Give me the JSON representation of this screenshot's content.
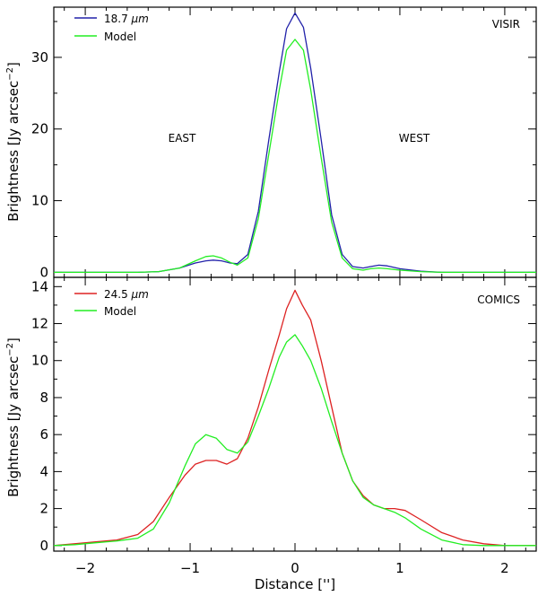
{
  "chart_data": [
    {
      "type": "line",
      "id": "top",
      "annotation": "VISIR",
      "region_labels": [
        "EAST",
        "WEST"
      ],
      "ylabel_prefix": "Brightness [Jy arcsec",
      "ylabel_exp": "−2",
      "ylabel_suffix": "]",
      "xlim": [
        -2.3,
        2.3
      ],
      "ylim": [
        -0.7,
        37.0
      ],
      "yticks": [
        0,
        10,
        20,
        30
      ],
      "ytick_labels": [
        "0",
        "10",
        "20",
        "30"
      ],
      "xticks": [
        -2,
        -1,
        0,
        1,
        2
      ],
      "legend_loc": "top-left",
      "series": [
        {
          "name": "18.7 μm",
          "name_value": "18.7",
          "name_unit": "μm",
          "color": "#2222aa",
          "x": [
            -2.3,
            -1.8,
            -1.5,
            -1.3,
            -1.1,
            -0.95,
            -0.85,
            -0.78,
            -0.7,
            -0.62,
            -0.55,
            -0.45,
            -0.35,
            -0.25,
            -0.15,
            -0.08,
            0.0,
            0.08,
            0.15,
            0.25,
            0.35,
            0.45,
            0.55,
            0.65,
            0.72,
            0.8,
            0.88,
            1.0,
            1.2,
            1.4,
            1.7,
            2.0,
            2.3
          ],
          "y": [
            0,
            0,
            0,
            0.1,
            0.6,
            1.3,
            1.6,
            1.7,
            1.6,
            1.3,
            1.2,
            2.5,
            8.5,
            18.5,
            28.0,
            34.0,
            36.2,
            34.2,
            28.5,
            18.5,
            8.0,
            2.5,
            0.8,
            0.6,
            0.8,
            1.0,
            0.9,
            0.5,
            0.15,
            0,
            0,
            0,
            0
          ]
        },
        {
          "name": "Model",
          "name_value": "Model",
          "name_unit": "",
          "color": "#22ee22",
          "x": [
            -2.3,
            -1.8,
            -1.5,
            -1.3,
            -1.1,
            -0.95,
            -0.85,
            -0.78,
            -0.7,
            -0.62,
            -0.55,
            -0.45,
            -0.35,
            -0.25,
            -0.15,
            -0.08,
            0.0,
            0.08,
            0.15,
            0.25,
            0.35,
            0.45,
            0.55,
            0.65,
            0.72,
            0.8,
            0.88,
            1.0,
            1.2,
            1.4,
            1.7,
            2.0,
            2.3
          ],
          "y": [
            0,
            0,
            0,
            0.1,
            0.6,
            1.6,
            2.2,
            2.3,
            2.0,
            1.4,
            1.0,
            2.0,
            7.5,
            16.5,
            25.5,
            31.0,
            32.5,
            31.0,
            25.5,
            16.0,
            7.0,
            2.0,
            0.5,
            0.3,
            0.5,
            0.6,
            0.5,
            0.3,
            0.1,
            0,
            0,
            0,
            0
          ]
        }
      ]
    },
    {
      "type": "line",
      "id": "bottom",
      "annotation": "COMICS",
      "ylabel_prefix": "Brightness [Jy arcsec",
      "ylabel_exp": "−2",
      "ylabel_suffix": "]",
      "xlabel": "Distance ['']",
      "xlim": [
        -2.3,
        2.3
      ],
      "ylim": [
        -0.3,
        14.5
      ],
      "yticks": [
        0,
        2,
        4,
        6,
        8,
        10,
        12,
        14
      ],
      "ytick_labels": [
        "0",
        "2",
        "4",
        "6",
        "8",
        "10",
        "12",
        "14"
      ],
      "xticks": [
        -2,
        -1,
        0,
        1,
        2
      ],
      "xtick_labels": [
        "−2",
        "−1",
        "0",
        "1",
        "2"
      ],
      "legend_loc": "top-left",
      "series": [
        {
          "name": "24.5 μm",
          "name_value": "24.5",
          "name_unit": "μm",
          "color": "#dd2222",
          "x": [
            -2.3,
            -2.1,
            -1.9,
            -1.7,
            -1.5,
            -1.35,
            -1.2,
            -1.05,
            -0.95,
            -0.85,
            -0.75,
            -0.65,
            -0.55,
            -0.45,
            -0.35,
            -0.25,
            -0.15,
            -0.08,
            0.0,
            0.07,
            0.15,
            0.25,
            0.35,
            0.45,
            0.55,
            0.65,
            0.75,
            0.85,
            0.95,
            1.05,
            1.2,
            1.4,
            1.6,
            1.8,
            2.0,
            2.3
          ],
          "y": [
            0,
            0.1,
            0.2,
            0.3,
            0.6,
            1.3,
            2.6,
            3.8,
            4.4,
            4.6,
            4.6,
            4.4,
            4.7,
            5.8,
            7.5,
            9.5,
            11.4,
            12.8,
            13.8,
            13.0,
            12.2,
            10.0,
            7.5,
            5.0,
            3.5,
            2.7,
            2.2,
            2.0,
            2.0,
            1.9,
            1.4,
            0.7,
            0.3,
            0.1,
            0,
            0
          ]
        },
        {
          "name": "Model",
          "name_value": "Model",
          "name_unit": "",
          "color": "#22ee22",
          "x": [
            -2.3,
            -2.1,
            -1.9,
            -1.7,
            -1.5,
            -1.35,
            -1.2,
            -1.05,
            -0.95,
            -0.85,
            -0.75,
            -0.65,
            -0.55,
            -0.45,
            -0.35,
            -0.25,
            -0.15,
            -0.08,
            0.0,
            0.07,
            0.15,
            0.25,
            0.35,
            0.45,
            0.55,
            0.65,
            0.75,
            0.85,
            0.95,
            1.05,
            1.2,
            1.4,
            1.6,
            1.8,
            2.0,
            2.3
          ],
          "y": [
            0,
            0.05,
            0.15,
            0.25,
            0.4,
            0.9,
            2.3,
            4.3,
            5.5,
            6.0,
            5.8,
            5.2,
            5.0,
            5.6,
            7.0,
            8.5,
            10.2,
            11.0,
            11.4,
            10.8,
            10.0,
            8.5,
            6.7,
            5.0,
            3.5,
            2.6,
            2.2,
            2.0,
            1.8,
            1.5,
            0.9,
            0.3,
            0.05,
            0,
            0,
            0
          ]
        }
      ]
    }
  ]
}
